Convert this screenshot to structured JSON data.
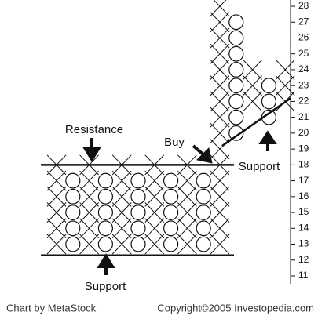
{
  "chart_data": {
    "type": "point-and-figure",
    "columns": [
      {
        "box": "X",
        "low": 13,
        "high": 18
      },
      {
        "box": "O",
        "low": 13,
        "high": 17
      },
      {
        "box": "X",
        "low": 13,
        "high": 18
      },
      {
        "box": "O",
        "low": 13,
        "high": 17
      },
      {
        "box": "X",
        "low": 13,
        "high": 18
      },
      {
        "box": "O",
        "low": 13,
        "high": 17
      },
      {
        "box": "X",
        "low": 13,
        "high": 18
      },
      {
        "box": "O",
        "low": 13,
        "high": 17
      },
      {
        "box": "X",
        "low": 13,
        "high": 18
      },
      {
        "box": "O",
        "low": 13,
        "high": 17
      },
      {
        "box": "X",
        "low": 13,
        "high": 28
      },
      {
        "box": "O",
        "low": 20,
        "high": 27
      },
      {
        "box": "X",
        "low": 22,
        "high": 24
      },
      {
        "box": "O",
        "low": 21,
        "high": 23
      },
      {
        "box": "X",
        "low": 22,
        "high": 24
      }
    ],
    "resistance_level": 18,
    "support_level": 12.3,
    "trendline": {
      "from": 19.2,
      "to": 22.2
    },
    "ylim": [
      11,
      28
    ],
    "yticks": [
      11,
      12,
      13,
      14,
      15,
      16,
      17,
      18,
      19,
      20,
      21,
      22,
      23,
      24,
      25,
      26,
      27,
      28
    ],
    "annotations": {
      "resistance": "Resistance",
      "buy": "Buy",
      "support_right": "Support",
      "support_bottom": "Support"
    },
    "footer": {
      "left": "Chart by MetaStock",
      "right": "Copyright©2005 Investopedia.com"
    }
  }
}
